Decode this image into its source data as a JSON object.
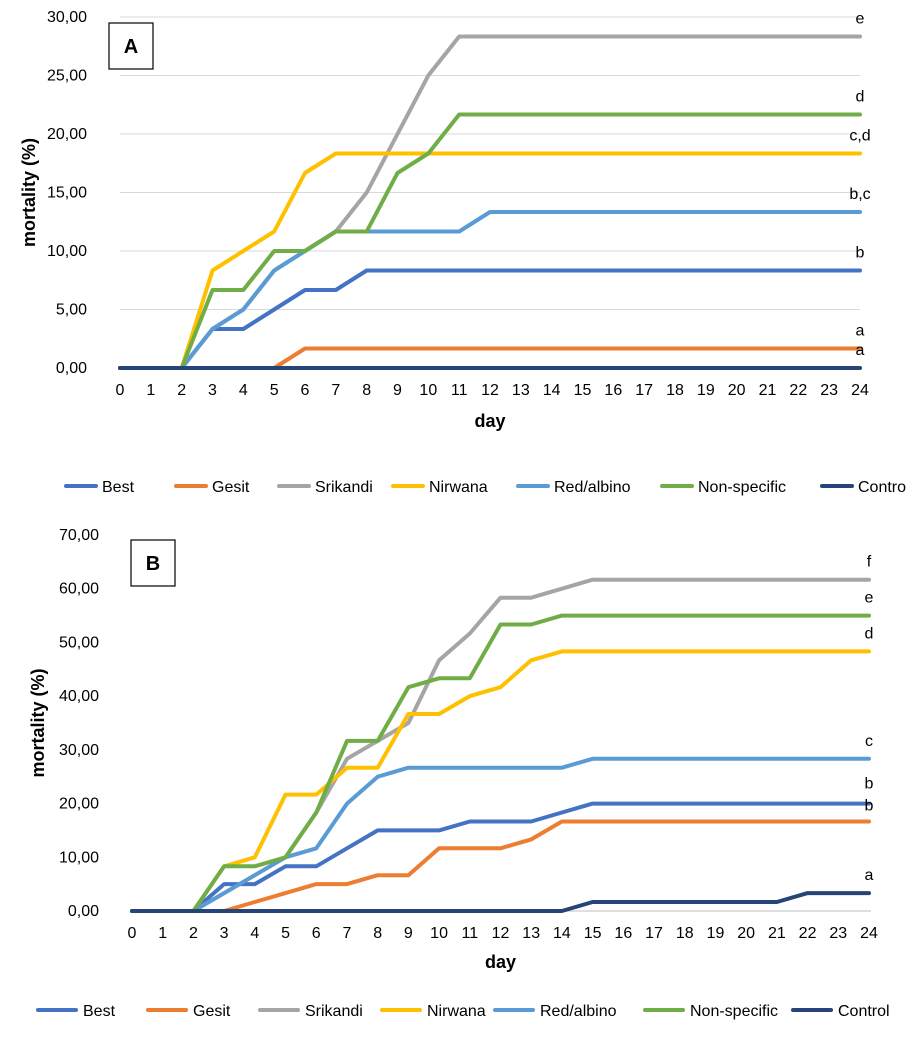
{
  "colors": {
    "Best": "#4472C4",
    "Gesit": "#ED7D31",
    "Srikandi": "#A5A5A5",
    "Nirwana": "#FFC000",
    "Red/albino": "#5B9BD5",
    "Non-specific": "#70AD47",
    "Control": "#264478"
  },
  "chart_data": [
    {
      "type": "line",
      "panel_label": "A",
      "xlabel": "day",
      "ylabel": "mortality (%)",
      "x": [
        0,
        1,
        2,
        3,
        4,
        5,
        6,
        7,
        8,
        9,
        10,
        11,
        12,
        13,
        14,
        15,
        16,
        17,
        18,
        19,
        20,
        21,
        22,
        23,
        24
      ],
      "ylim": [
        0,
        30
      ],
      "y_ticks": [
        "0,00",
        "5,00",
        "10,00",
        "15,00",
        "20,00",
        "25,00",
        "30,00"
      ],
      "grid": "horizontal",
      "legend_position": "bottom",
      "series": [
        {
          "name": "Best",
          "sig": "b",
          "values": [
            0,
            0,
            0,
            3.33,
            3.33,
            5,
            6.67,
            6.67,
            8.33,
            8.33,
            8.33,
            8.33,
            8.33,
            8.33,
            8.33,
            8.33,
            8.33,
            8.33,
            8.33,
            8.33,
            8.33,
            8.33,
            8.33,
            8.33,
            8.33
          ]
        },
        {
          "name": "Gesit",
          "sig": "a",
          "values": [
            0,
            0,
            0,
            0,
            0,
            0,
            1.67,
            1.67,
            1.67,
            1.67,
            1.67,
            1.67,
            1.67,
            1.67,
            1.67,
            1.67,
            1.67,
            1.67,
            1.67,
            1.67,
            1.67,
            1.67,
            1.67,
            1.67,
            1.67
          ]
        },
        {
          "name": "Srikandi",
          "sig": "e",
          "values": [
            0,
            0,
            0,
            3.33,
            5,
            8.33,
            10,
            11.67,
            15,
            20,
            25,
            28.33,
            28.33,
            28.33,
            28.33,
            28.33,
            28.33,
            28.33,
            28.33,
            28.33,
            28.33,
            28.33,
            28.33,
            28.33,
            28.33
          ]
        },
        {
          "name": "Nirwana",
          "sig": "c,d",
          "values": [
            0,
            0,
            0,
            8.33,
            10,
            11.67,
            16.67,
            18.33,
            18.33,
            18.33,
            18.33,
            18.33,
            18.33,
            18.33,
            18.33,
            18.33,
            18.33,
            18.33,
            18.33,
            18.33,
            18.33,
            18.33,
            18.33,
            18.33,
            18.33
          ]
        },
        {
          "name": "Red/albino",
          "sig": "b,c",
          "values": [
            0,
            0,
            0,
            3.33,
            5,
            8.33,
            10,
            11.67,
            11.67,
            11.67,
            11.67,
            11.67,
            13.33,
            13.33,
            13.33,
            13.33,
            13.33,
            13.33,
            13.33,
            13.33,
            13.33,
            13.33,
            13.33,
            13.33,
            13.33
          ]
        },
        {
          "name": "Non-specific",
          "sig": "d",
          "values": [
            0,
            0,
            0,
            6.67,
            6.67,
            10,
            10,
            11.67,
            11.67,
            16.67,
            18.33,
            21.67,
            21.67,
            21.67,
            21.67,
            21.67,
            21.67,
            21.67,
            21.67,
            21.67,
            21.67,
            21.67,
            21.67,
            21.67,
            21.67
          ]
        },
        {
          "name": "Control",
          "sig": "a",
          "values": [
            0,
            0,
            0,
            0,
            0,
            0,
            0,
            0,
            0,
            0,
            0,
            0,
            0,
            0,
            0,
            0,
            0,
            0,
            0,
            0,
            0,
            0,
            0,
            0,
            0
          ]
        }
      ]
    },
    {
      "type": "line",
      "panel_label": "B",
      "xlabel": "day",
      "ylabel": "mortality (%)",
      "x": [
        0,
        1,
        2,
        3,
        4,
        5,
        6,
        7,
        8,
        9,
        10,
        11,
        12,
        13,
        14,
        15,
        16,
        17,
        18,
        19,
        20,
        21,
        22,
        23,
        24
      ],
      "ylim": [
        0,
        70
      ],
      "y_ticks": [
        "0,00",
        "10,00",
        "20,00",
        "30,00",
        "40,00",
        "50,00",
        "60,00",
        "70,00"
      ],
      "grid": "none",
      "legend_position": "bottom",
      "series": [
        {
          "name": "Best",
          "sig": "b",
          "values": [
            0,
            0,
            0,
            5,
            5,
            8.33,
            8.33,
            11.67,
            15,
            15,
            15,
            16.67,
            16.67,
            16.67,
            18.33,
            20,
            20,
            20,
            20,
            20,
            20,
            20,
            20,
            20,
            20
          ]
        },
        {
          "name": "Gesit",
          "sig": "b",
          "values": [
            0,
            0,
            0,
            0,
            1.67,
            3.33,
            5,
            5,
            6.67,
            6.67,
            11.67,
            11.67,
            11.67,
            13.33,
            16.67,
            16.67,
            16.67,
            16.67,
            16.67,
            16.67,
            16.67,
            16.67,
            16.67,
            16.67,
            16.67
          ]
        },
        {
          "name": "Srikandi",
          "sig": "f",
          "values": [
            0,
            0,
            0,
            3.33,
            6.67,
            10,
            18.33,
            28.33,
            31.67,
            35,
            46.67,
            51.67,
            58.33,
            58.33,
            60,
            61.67,
            61.67,
            61.67,
            61.67,
            61.67,
            61.67,
            61.67,
            61.67,
            61.67,
            61.67
          ]
        },
        {
          "name": "Nirwana",
          "sig": "d",
          "values": [
            0,
            0,
            0,
            8.33,
            10,
            21.67,
            21.67,
            26.67,
            26.67,
            36.67,
            36.67,
            40,
            41.67,
            46.67,
            48.33,
            48.33,
            48.33,
            48.33,
            48.33,
            48.33,
            48.33,
            48.33,
            48.33,
            48.33,
            48.33
          ]
        },
        {
          "name": "Red/albino",
          "sig": "c",
          "values": [
            0,
            0,
            0,
            3.33,
            6.67,
            10,
            11.67,
            20,
            25,
            26.67,
            26.67,
            26.67,
            26.67,
            26.67,
            26.67,
            28.33,
            28.33,
            28.33,
            28.33,
            28.33,
            28.33,
            28.33,
            28.33,
            28.33,
            28.33
          ]
        },
        {
          "name": "Non-specific",
          "sig": "e",
          "values": [
            0,
            0,
            0,
            8.33,
            8.33,
            10,
            18.33,
            31.67,
            31.67,
            41.67,
            43.33,
            43.33,
            53.33,
            53.33,
            55,
            55,
            55,
            55,
            55,
            55,
            55,
            55,
            55,
            55,
            55
          ]
        },
        {
          "name": "Control",
          "sig": "a",
          "values": [
            0,
            0,
            0,
            0,
            0,
            0,
            0,
            0,
            0,
            0,
            0,
            0,
            0,
            0,
            0,
            1.67,
            1.67,
            1.67,
            1.67,
            1.67,
            1.67,
            1.67,
            3.33,
            3.33,
            3.33
          ]
        }
      ]
    }
  ]
}
